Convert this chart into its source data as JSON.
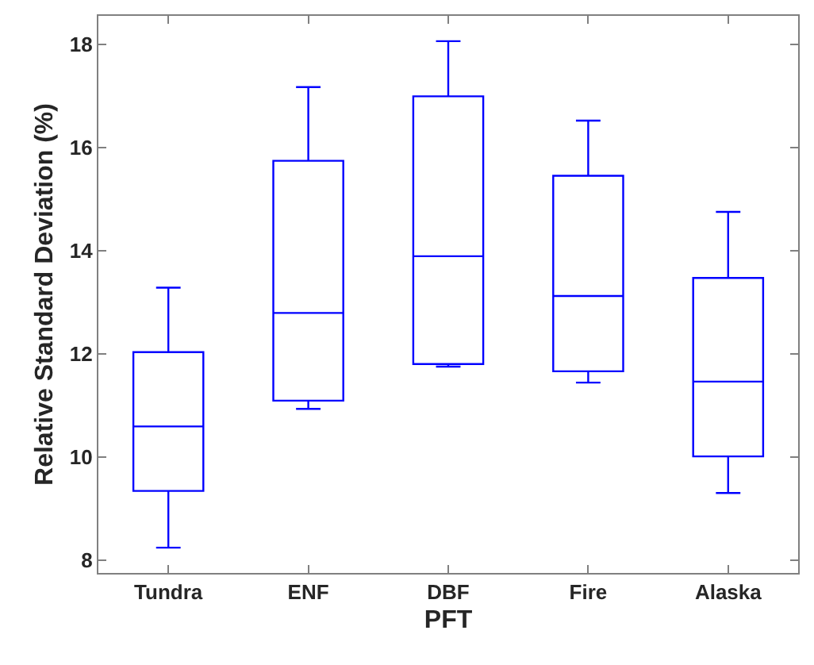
{
  "chart_data": {
    "type": "box",
    "xlabel": "PFT",
    "ylabel": "Relative Standard Deviation (%)",
    "categories": [
      "Tundra",
      "ENF",
      "DBF",
      "Fire",
      "Alaska"
    ],
    "series": [
      {
        "color": "#0000ff",
        "boxes": [
          {
            "low": 8.24,
            "q1": 9.34,
            "median": 10.59,
            "q3": 12.03,
            "high": 13.28
          },
          {
            "low": 10.93,
            "q1": 11.09,
            "median": 12.79,
            "q3": 15.74,
            "high": 17.17
          },
          {
            "low": 11.75,
            "q1": 11.8,
            "median": 13.89,
            "q3": 16.99,
            "high": 18.06
          },
          {
            "low": 11.44,
            "q1": 11.66,
            "median": 13.12,
            "q3": 15.45,
            "high": 16.52
          },
          {
            "low": 9.3,
            "q1": 10.01,
            "median": 11.46,
            "q3": 13.47,
            "high": 14.75
          }
        ]
      }
    ],
    "ylim": [
      7.75,
      18.55
    ],
    "yticks": [
      8,
      10,
      12,
      14,
      16,
      18
    ]
  }
}
